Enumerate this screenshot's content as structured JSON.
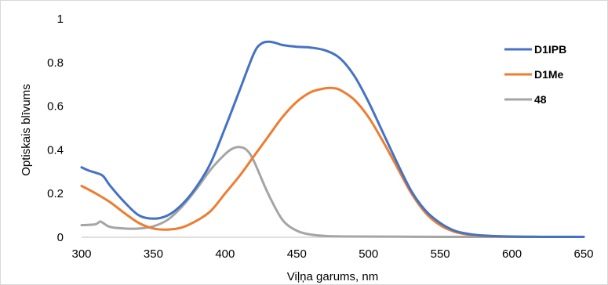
{
  "chart_data": {
    "type": "line",
    "title": "",
    "xlabel": "Viļņa garums, nm",
    "ylabel": "Optiskais blīvums",
    "xlim": [
      300,
      650
    ],
    "ylim": [
      0,
      1
    ],
    "xticks": [
      "300",
      "350",
      "400",
      "450",
      "500",
      "550",
      "600",
      "650"
    ],
    "yticks": [
      "0",
      "0.2",
      "0.4",
      "0.6",
      "0.8",
      "1"
    ],
    "grid": false,
    "legend_position": "right",
    "series": [
      {
        "name": "D1IPB",
        "color": "#4472C4",
        "x": [
          300,
          305,
          310,
          315,
          320,
          330,
          340,
          350,
          360,
          370,
          380,
          390,
          400,
          410,
          420,
          425,
          430,
          435,
          440,
          450,
          460,
          470,
          480,
          490,
          500,
          510,
          520,
          530,
          540,
          550,
          560,
          570,
          580,
          600,
          620,
          650
        ],
        "y": [
          0.32,
          0.305,
          0.295,
          0.28,
          0.235,
          0.16,
          0.1,
          0.085,
          0.1,
          0.15,
          0.23,
          0.34,
          0.5,
          0.67,
          0.84,
          0.885,
          0.895,
          0.89,
          0.88,
          0.872,
          0.868,
          0.855,
          0.82,
          0.74,
          0.62,
          0.48,
          0.34,
          0.21,
          0.12,
          0.065,
          0.03,
          0.015,
          0.008,
          0.003,
          0.002,
          0.002
        ]
      },
      {
        "name": "D1Me",
        "color": "#ED7D31",
        "x": [
          300,
          310,
          320,
          330,
          340,
          350,
          360,
          370,
          380,
          390,
          400,
          410,
          420,
          430,
          440,
          450,
          460,
          470,
          475,
          480,
          490,
          500,
          510,
          520,
          530,
          540,
          550,
          560,
          570,
          580,
          600,
          620,
          650
        ],
        "y": [
          0.235,
          0.2,
          0.16,
          0.11,
          0.065,
          0.04,
          0.035,
          0.045,
          0.075,
          0.12,
          0.2,
          0.28,
          0.37,
          0.46,
          0.55,
          0.62,
          0.665,
          0.682,
          0.683,
          0.675,
          0.63,
          0.55,
          0.44,
          0.32,
          0.2,
          0.11,
          0.055,
          0.025,
          0.012,
          0.006,
          0.003,
          0.002,
          0.002
        ]
      },
      {
        "name": "48",
        "color": "#A5A5A5",
        "x": [
          300,
          305,
          310,
          313,
          315,
          320,
          330,
          340,
          350,
          360,
          370,
          380,
          390,
          400,
          405,
          410,
          415,
          420,
          430,
          440,
          450,
          460,
          470,
          480,
          500,
          550,
          600,
          650
        ],
        "y": [
          0.055,
          0.057,
          0.06,
          0.072,
          0.065,
          0.047,
          0.04,
          0.04,
          0.05,
          0.08,
          0.14,
          0.22,
          0.31,
          0.38,
          0.405,
          0.413,
          0.4,
          0.35,
          0.2,
          0.08,
          0.03,
          0.012,
          0.006,
          0.004,
          0.003,
          0.002,
          0.002,
          0.002
        ]
      }
    ]
  }
}
